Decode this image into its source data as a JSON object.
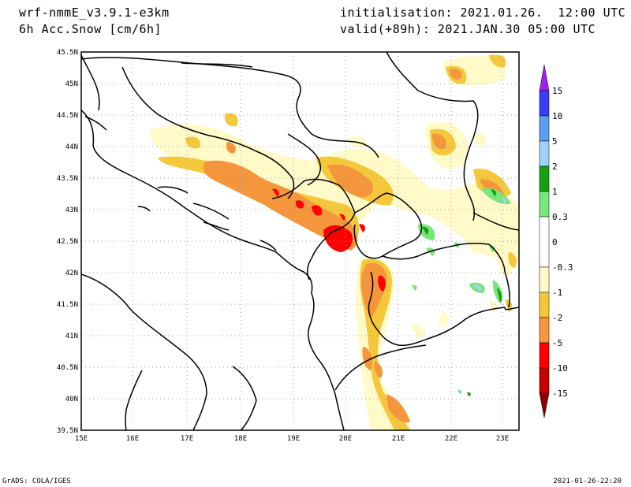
{
  "header": {
    "model": "wrf-nmmE_v3.9.1-e3km",
    "field": "6h Acc.Snow [cm/6h]",
    "init": "initialisation: 2021.01.26.  12:00 UTC",
    "valid": "valid(+89h): 2021.JAN.30 05:00 UTC"
  },
  "footer": {
    "left": "GrADS: COLA/IGES",
    "right": "2021-01-26-22:20"
  },
  "axes": {
    "lon_labels": [
      "15E",
      "16E",
      "17E",
      "18E",
      "19E",
      "20E",
      "21E",
      "22E",
      "23E"
    ],
    "lat_labels": [
      "45.5N",
      "45N",
      "44.5N",
      "44N",
      "43.5N",
      "43N",
      "42.5N",
      "42N",
      "41.5N",
      "41N",
      "40.5N",
      "40N",
      "39.5N"
    ]
  },
  "colorbar": {
    "labels": [
      "15",
      "10",
      "5",
      "2",
      "1",
      "0.3",
      "0",
      "-0.3",
      "-1",
      "-2",
      "-5",
      "-10",
      "-15"
    ],
    "colors": [
      "#7a1ef0",
      "#3c3cf5",
      "#5aa0f0",
      "#a0d2fa",
      "#14a014",
      "#78e678",
      "#ffffff",
      "#fffac8",
      "#f5c83c",
      "#f5963c",
      "#ff0000",
      "#c80000",
      "#8c0000"
    ]
  },
  "map": {
    "snow_colors": {
      "light": "#fffac8",
      "moderate": "#f5c83c",
      "heavy": "#f5963c",
      "very_heavy": "#ff0000",
      "rain_green": "#78e678",
      "dark_green": "#14a014",
      "blue": "#a0d2fa"
    }
  }
}
